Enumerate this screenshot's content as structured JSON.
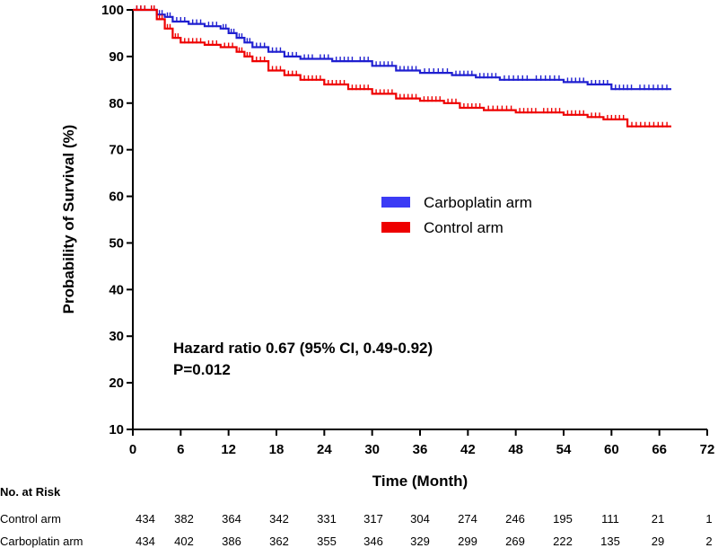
{
  "chart_data": {
    "type": "line",
    "xlabel": "Time (Month)",
    "ylabel": "Probability of Survival (%)",
    "xlim": [
      0,
      72
    ],
    "ylim": [
      10,
      100
    ],
    "xticks": [
      0,
      6,
      12,
      18,
      24,
      30,
      36,
      42,
      48,
      54,
      60,
      66,
      72
    ],
    "yticks": [
      10,
      20,
      30,
      40,
      50,
      60,
      70,
      80,
      90,
      100
    ],
    "grid": false,
    "legend_position": "center-right",
    "series": [
      {
        "name": "Carboplatin arm",
        "color": "#1f1fd0",
        "legend_color": "#3b3bf5",
        "points": [
          [
            0,
            100
          ],
          [
            2,
            100
          ],
          [
            3,
            99
          ],
          [
            4,
            98.5
          ],
          [
            5,
            97.5
          ],
          [
            7,
            97
          ],
          [
            9,
            96.5
          ],
          [
            11,
            96
          ],
          [
            12,
            95
          ],
          [
            13,
            94
          ],
          [
            14,
            93
          ],
          [
            15,
            92
          ],
          [
            17,
            91
          ],
          [
            19,
            90
          ],
          [
            21,
            89.5
          ],
          [
            23,
            89.5
          ],
          [
            25,
            89
          ],
          [
            28,
            89
          ],
          [
            30,
            88
          ],
          [
            33,
            87
          ],
          [
            36,
            86.5
          ],
          [
            40,
            86
          ],
          [
            43,
            85.5
          ],
          [
            46,
            85
          ],
          [
            50,
            85
          ],
          [
            54,
            84.5
          ],
          [
            57,
            84
          ],
          [
            60,
            83
          ],
          [
            63,
            83
          ],
          [
            67.5,
            83
          ]
        ]
      },
      {
        "name": "Control arm",
        "color": "#ee0000",
        "legend_color": "#ee0000",
        "points": [
          [
            0,
            100
          ],
          [
            2,
            100
          ],
          [
            3,
            98
          ],
          [
            4,
            96
          ],
          [
            5,
            94
          ],
          [
            6,
            93
          ],
          [
            9,
            92.5
          ],
          [
            11,
            92
          ],
          [
            13,
            91
          ],
          [
            14,
            90
          ],
          [
            15,
            89
          ],
          [
            17,
            87
          ],
          [
            19,
            86
          ],
          [
            21,
            85
          ],
          [
            24,
            84
          ],
          [
            27,
            83
          ],
          [
            30,
            82
          ],
          [
            33,
            81
          ],
          [
            36,
            80.5
          ],
          [
            39,
            80
          ],
          [
            41,
            79
          ],
          [
            44,
            78.5
          ],
          [
            48,
            78
          ],
          [
            51,
            78
          ],
          [
            54,
            77.5
          ],
          [
            57,
            77
          ],
          [
            59,
            76.5
          ],
          [
            62,
            75
          ],
          [
            67.5,
            75
          ]
        ]
      }
    ],
    "annotations": [
      "Hazard ratio 0.67 (95% CI, 0.49-0.92)",
      "P=0.012"
    ],
    "risk_table": {
      "title": "No. at Risk",
      "rows": [
        {
          "label": "Control arm",
          "values": [
            434,
            382,
            364,
            342,
            331,
            317,
            304,
            274,
            246,
            195,
            111,
            21,
            1
          ]
        },
        {
          "label": "Carboplatin arm",
          "values": [
            434,
            402,
            386,
            362,
            355,
            346,
            329,
            299,
            269,
            222,
            135,
            29,
            2
          ]
        }
      ]
    }
  }
}
